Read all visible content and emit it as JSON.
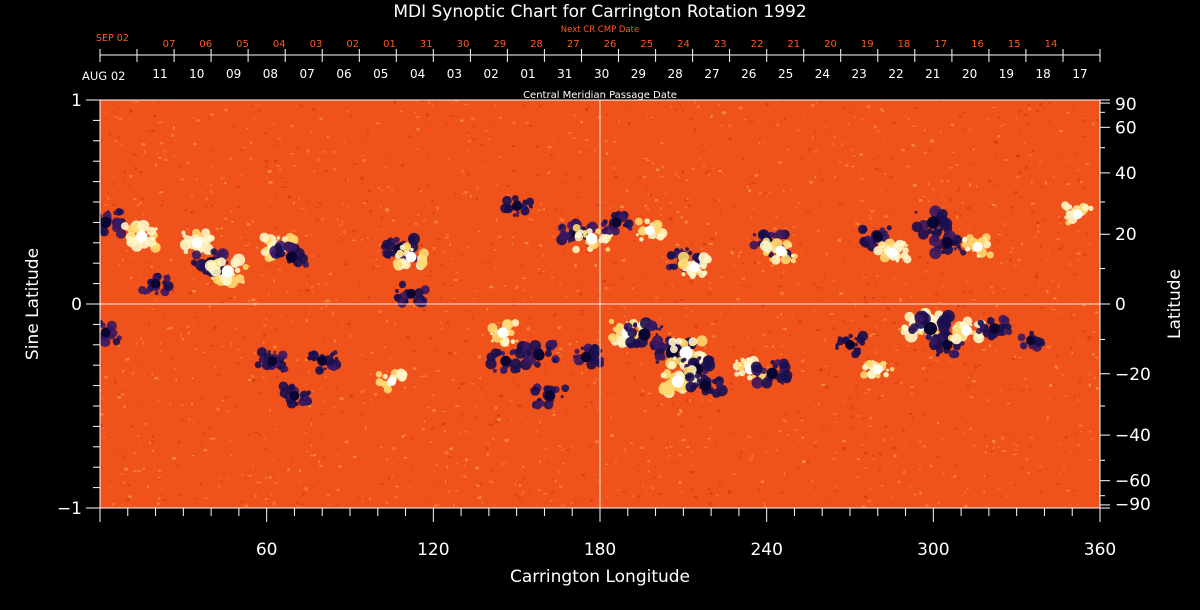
{
  "chart_data": {
    "type": "heatmap",
    "title": "MDI Synoptic Chart for Carrington Rotation 1992",
    "xlabel": "Carrington Longitude",
    "ylabel_left": "Sine Latitude",
    "ylabel_right": "Latitude",
    "xlim": [
      0,
      360
    ],
    "ylim": [
      -1,
      1
    ],
    "x_ticks": [
      60,
      120,
      180,
      240,
      300,
      360
    ],
    "y_ticks_left": [
      {
        "value": 1,
        "label": "1"
      },
      {
        "value": 0,
        "label": "0"
      },
      {
        "value": -1,
        "label": "−1"
      }
    ],
    "y_ticks_right": [
      90,
      60,
      40,
      20,
      0,
      -20,
      -40,
      -60,
      -90
    ],
    "right_tick_labels": [
      "90",
      "60",
      "40",
      "20",
      "0",
      "−20",
      "−40",
      "−60",
      "−90"
    ],
    "cmp_axis": {
      "label": "Central Meridian Passage Date",
      "start_label": "AUG 02",
      "dates": [
        "11",
        "10",
        "09",
        "08",
        "07",
        "06",
        "05",
        "04",
        "03",
        "02",
        "01",
        "31",
        "30",
        "29",
        "28",
        "27",
        "26",
        "25",
        "24",
        "23",
        "22",
        "21",
        "20",
        "19",
        "18",
        "17"
      ]
    },
    "next_cmp_axis": {
      "label": "Next CR CMP Date",
      "start_label": "SEP 02",
      "dates": [
        "07",
        "06",
        "05",
        "04",
        "03",
        "02",
        "01",
        "31",
        "30",
        "29",
        "28",
        "27",
        "26",
        "25",
        "24",
        "23",
        "22",
        "21",
        "20",
        "19",
        "18",
        "17",
        "16",
        "15",
        "14"
      ]
    },
    "grid": "crosshair at longitude 180 and sine latitude 0",
    "colors": {
      "background": "#000000",
      "field_base": "#f0521c",
      "positive_polarity": "#fff6c8",
      "negative_polarity": "#1a1050",
      "axis_text": "#ffffff",
      "next_cmp_text": "#ff5a1e"
    },
    "regions": [
      {
        "lon": 2,
        "sinlat": 0.4,
        "polarity": "negative",
        "strength": 0.8
      },
      {
        "lon": 15,
        "sinlat": 0.33,
        "polarity": "positive",
        "strength": 0.8
      },
      {
        "lon": 35,
        "sinlat": 0.3,
        "polarity": "positive",
        "strength": 0.7
      },
      {
        "lon": 40,
        "sinlat": 0.2,
        "polarity": "negative",
        "strength": 0.9
      },
      {
        "lon": 46,
        "sinlat": 0.16,
        "polarity": "positive",
        "strength": 0.9
      },
      {
        "lon": 20,
        "sinlat": 0.1,
        "polarity": "negative",
        "strength": 0.6
      },
      {
        "lon": 65,
        "sinlat": 0.28,
        "polarity": "positive",
        "strength": 0.8
      },
      {
        "lon": 69,
        "sinlat": 0.23,
        "polarity": "negative",
        "strength": 0.8
      },
      {
        "lon": 108,
        "sinlat": 0.27,
        "polarity": "negative",
        "strength": 0.8
      },
      {
        "lon": 112,
        "sinlat": 0.23,
        "polarity": "positive",
        "strength": 0.7
      },
      {
        "lon": 112,
        "sinlat": 0.05,
        "polarity": "negative",
        "strength": 0.6
      },
      {
        "lon": 150,
        "sinlat": 0.48,
        "polarity": "negative",
        "strength": 0.6
      },
      {
        "lon": 172,
        "sinlat": 0.34,
        "polarity": "negative",
        "strength": 0.8
      },
      {
        "lon": 177,
        "sinlat": 0.32,
        "polarity": "positive",
        "strength": 0.8
      },
      {
        "lon": 186,
        "sinlat": 0.4,
        "polarity": "negative",
        "strength": 0.6
      },
      {
        "lon": 198,
        "sinlat": 0.36,
        "polarity": "positive",
        "strength": 0.6
      },
      {
        "lon": 210,
        "sinlat": 0.22,
        "polarity": "negative",
        "strength": 0.8
      },
      {
        "lon": 214,
        "sinlat": 0.18,
        "polarity": "positive",
        "strength": 0.7
      },
      {
        "lon": 241,
        "sinlat": 0.29,
        "polarity": "negative",
        "strength": 0.8
      },
      {
        "lon": 245,
        "sinlat": 0.26,
        "polarity": "positive",
        "strength": 0.7
      },
      {
        "lon": 280,
        "sinlat": 0.33,
        "polarity": "negative",
        "strength": 0.7
      },
      {
        "lon": 285,
        "sinlat": 0.25,
        "polarity": "positive",
        "strength": 0.7
      },
      {
        "lon": 300,
        "sinlat": 0.4,
        "polarity": "negative",
        "strength": 0.9
      },
      {
        "lon": 305,
        "sinlat": 0.3,
        "polarity": "negative",
        "strength": 0.8
      },
      {
        "lon": 316,
        "sinlat": 0.28,
        "polarity": "positive",
        "strength": 0.6
      },
      {
        "lon": 352,
        "sinlat": 0.44,
        "polarity": "positive",
        "strength": 0.6
      },
      {
        "lon": 2,
        "sinlat": -0.14,
        "polarity": "negative",
        "strength": 0.6
      },
      {
        "lon": 62,
        "sinlat": -0.28,
        "polarity": "negative",
        "strength": 0.6
      },
      {
        "lon": 70,
        "sinlat": -0.45,
        "polarity": "negative",
        "strength": 0.6
      },
      {
        "lon": 80,
        "sinlat": -0.28,
        "polarity": "negative",
        "strength": 0.6
      },
      {
        "lon": 105,
        "sinlat": -0.38,
        "polarity": "positive",
        "strength": 0.5
      },
      {
        "lon": 145,
        "sinlat": -0.14,
        "polarity": "positive",
        "strength": 0.7
      },
      {
        "lon": 146,
        "sinlat": -0.28,
        "polarity": "negative",
        "strength": 0.7
      },
      {
        "lon": 158,
        "sinlat": -0.25,
        "polarity": "negative",
        "strength": 0.8
      },
      {
        "lon": 162,
        "sinlat": -0.45,
        "polarity": "negative",
        "strength": 0.7
      },
      {
        "lon": 175,
        "sinlat": -0.26,
        "polarity": "negative",
        "strength": 0.7
      },
      {
        "lon": 190,
        "sinlat": -0.14,
        "polarity": "positive",
        "strength": 0.9
      },
      {
        "lon": 196,
        "sinlat": -0.15,
        "polarity": "negative",
        "strength": 0.9
      },
      {
        "lon": 206,
        "sinlat": -0.24,
        "polarity": "negative",
        "strength": 1.0
      },
      {
        "lon": 211,
        "sinlat": -0.24,
        "polarity": "positive",
        "strength": 1.0
      },
      {
        "lon": 215,
        "sinlat": -0.32,
        "polarity": "negative",
        "strength": 0.9
      },
      {
        "lon": 208,
        "sinlat": -0.38,
        "polarity": "positive",
        "strength": 0.9
      },
      {
        "lon": 218,
        "sinlat": -0.4,
        "polarity": "negative",
        "strength": 0.8
      },
      {
        "lon": 234,
        "sinlat": -0.32,
        "polarity": "positive",
        "strength": 0.7
      },
      {
        "lon": 242,
        "sinlat": -0.34,
        "polarity": "negative",
        "strength": 0.8
      },
      {
        "lon": 270,
        "sinlat": -0.2,
        "polarity": "negative",
        "strength": 0.6
      },
      {
        "lon": 280,
        "sinlat": -0.32,
        "polarity": "positive",
        "strength": 0.6
      },
      {
        "lon": 296,
        "sinlat": -0.1,
        "polarity": "positive",
        "strength": 1.0
      },
      {
        "lon": 299,
        "sinlat": -0.12,
        "polarity": "negative",
        "strength": 1.0
      },
      {
        "lon": 305,
        "sinlat": -0.2,
        "polarity": "negative",
        "strength": 0.7
      },
      {
        "lon": 312,
        "sinlat": -0.13,
        "polarity": "positive",
        "strength": 0.7
      },
      {
        "lon": 322,
        "sinlat": -0.12,
        "polarity": "negative",
        "strength": 0.7
      },
      {
        "lon": 335,
        "sinlat": -0.18,
        "polarity": "negative",
        "strength": 0.5
      }
    ]
  }
}
